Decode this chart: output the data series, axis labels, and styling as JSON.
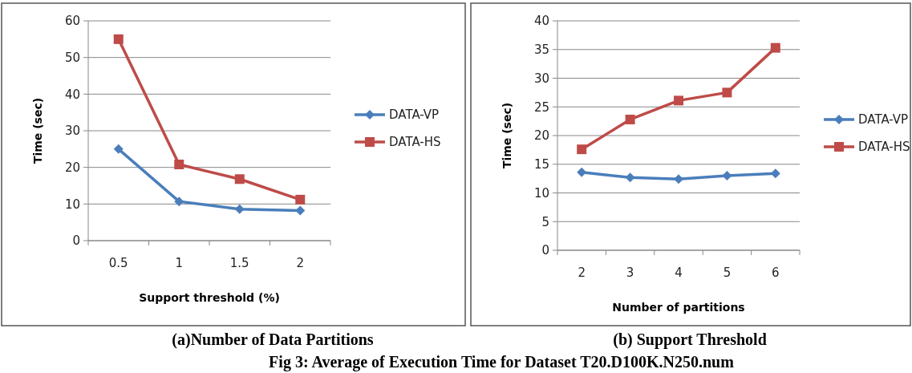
{
  "chart_data": [
    {
      "type": "line",
      "subtitle": "(a)Number of Data Partitions",
      "xlabel": "Support threshold (%)",
      "ylabel": "Time (sec)",
      "categories": [
        "0.5",
        "1",
        "1.5",
        "2"
      ],
      "ylim": [
        0,
        60
      ],
      "yticks": [
        0,
        10,
        20,
        30,
        40,
        50,
        60
      ],
      "grid": "y",
      "legend": "right",
      "annotations": [
        "Fig 3: Average of Execution Time for Dataset T20.D100K.N250.num"
      ],
      "series": [
        {
          "name": "DATA-VP",
          "color": "#4a7ebb",
          "marker": "diamond",
          "values": [
            25,
            10.7,
            8.6,
            8.2
          ]
        },
        {
          "name": "DATA-HS",
          "color": "#be4b48",
          "marker": "square",
          "values": [
            55,
            20.8,
            16.8,
            11.2
          ]
        }
      ]
    },
    {
      "type": "line",
      "subtitle": "(b) Support Threshold",
      "xlabel": "Number  of partitions",
      "ylabel": "Time (sec)",
      "categories": [
        "2",
        "3",
        "4",
        "5",
        "6"
      ],
      "ylim": [
        0,
        40
      ],
      "yticks": [
        0,
        5,
        10,
        15,
        20,
        25,
        30,
        35,
        40
      ],
      "grid": "y",
      "legend": "right",
      "series": [
        {
          "name": "DATA-VP",
          "color": "#4a7ebb",
          "marker": "diamond",
          "values": [
            13.6,
            12.7,
            12.4,
            13.0,
            13.4
          ]
        },
        {
          "name": "DATA-HS",
          "color": "#be4b48",
          "marker": "square",
          "values": [
            17.6,
            22.8,
            26.1,
            27.5,
            35.3
          ]
        }
      ]
    }
  ]
}
